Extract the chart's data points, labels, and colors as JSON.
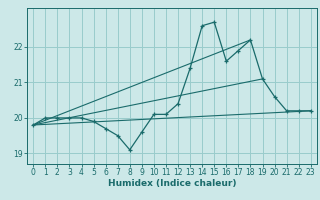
{
  "title": "",
  "xlabel": "Humidex (Indice chaleur)",
  "background_color": "#cce8e8",
  "grid_color": "#99cccc",
  "line_color": "#1a6b6b",
  "xlim": [
    -0.5,
    23.5
  ],
  "ylim": [
    18.7,
    23.1
  ],
  "yticks": [
    19,
    20,
    21,
    22
  ],
  "xticks": [
    0,
    1,
    2,
    3,
    4,
    5,
    6,
    7,
    8,
    9,
    10,
    11,
    12,
    13,
    14,
    15,
    16,
    17,
    18,
    19,
    20,
    21,
    22,
    23
  ],
  "series1_x": [
    0,
    1,
    2,
    3,
    4,
    5,
    6,
    7,
    8,
    9,
    10,
    11,
    12,
    13,
    14,
    15,
    16,
    17,
    18,
    19,
    20,
    21,
    22,
    23
  ],
  "series1_y": [
    19.8,
    20.0,
    20.0,
    20.0,
    20.0,
    19.9,
    19.7,
    19.5,
    19.1,
    19.6,
    20.1,
    20.1,
    20.4,
    21.4,
    22.6,
    22.7,
    21.6,
    21.9,
    22.2,
    21.1,
    20.6,
    20.2,
    20.2,
    20.2
  ],
  "series2_x": [
    0,
    23
  ],
  "series2_y": [
    19.8,
    20.2
  ],
  "series3_x": [
    0,
    19
  ],
  "series3_y": [
    19.8,
    21.1
  ],
  "series4_x": [
    0,
    18
  ],
  "series4_y": [
    19.8,
    22.2
  ]
}
